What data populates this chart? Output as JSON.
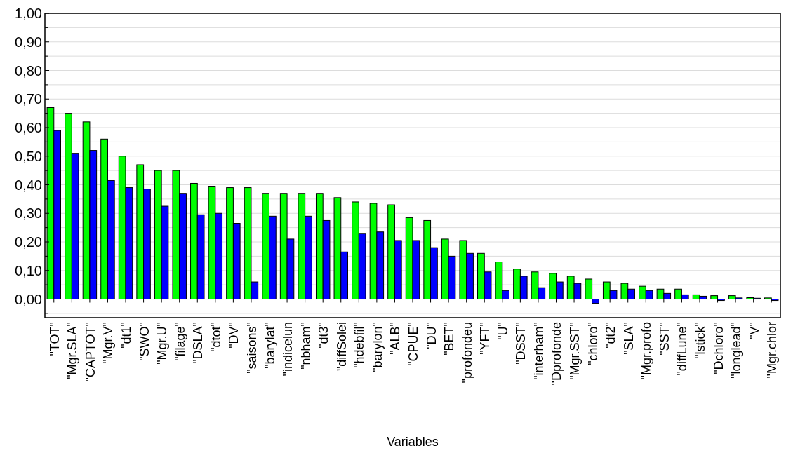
{
  "chart_data": {
    "type": "bar",
    "xlabel": "Variables",
    "categories": [
      "\"TOT\"",
      "\"Mgr.SLA\"",
      "\"CAPTOT\"",
      "\"Mgr.V\"",
      "\"dt1\"",
      "\"SWO\"",
      "\"Mgr.U\"",
      "\"filage\"",
      "\"DSLA\"",
      "\"dtot\"",
      "\"DV\"",
      "\"saisons\"",
      "\"barylat\"",
      "\"indicelun",
      "\"nbham\"",
      "\"dt3\"",
      "\"diffSolei",
      "\"hdebfil\"",
      "\"barylon\"",
      "\"ALB\"",
      "\"CPUE\"",
      "\"DU\"",
      "\"BET\"",
      "\"profondeu",
      "\"YFT\"",
      "\"U\"",
      "\"DSST\"",
      "\"interham\"",
      "\"Dprofonde",
      "\"Mgr.SST\"",
      "\"chloro\"",
      "\"dt2\"",
      "\"SLA\"",
      "\"Mgr.profo",
      "\"SST\"",
      "\"diffLune\"",
      "\"lstick\"",
      "\"Dchloro\"",
      "\"longlead\"",
      "\"V\"",
      "\"Mgr.chlor"
    ],
    "series": [
      {
        "color": "#00ff00",
        "values": [
          0.67,
          0.65,
          0.62,
          0.56,
          0.5,
          0.47,
          0.45,
          0.45,
          0.405,
          0.395,
          0.39,
          0.39,
          0.37,
          0.37,
          0.37,
          0.37,
          0.355,
          0.34,
          0.335,
          0.33,
          0.285,
          0.275,
          0.21,
          0.205,
          0.16,
          0.13,
          0.105,
          0.095,
          0.09,
          0.08,
          0.07,
          0.06,
          0.055,
          0.045,
          0.035,
          0.035,
          0.015,
          0.012,
          0.012,
          0.005,
          0.004
        ]
      },
      {
        "color": "#0000ff",
        "values": [
          0.59,
          0.51,
          0.52,
          0.415,
          0.39,
          0.385,
          0.325,
          0.37,
          0.295,
          0.3,
          0.265,
          0.06,
          0.29,
          0.21,
          0.29,
          0.275,
          0.165,
          0.23,
          0.235,
          0.205,
          0.205,
          0.18,
          0.15,
          0.16,
          0.095,
          0.03,
          0.08,
          0.04,
          0.06,
          0.055,
          -0.015,
          0.03,
          0.035,
          0.03,
          0.02,
          0.015,
          0.01,
          -0.005,
          0.004,
          0.003,
          -0.005
        ]
      }
    ],
    "ylim": [
      -0.065,
      1.0
    ],
    "yticks": [
      {
        "value": -0.05,
        "label": null
      },
      {
        "value": 0,
        "label": "0,00"
      },
      {
        "value": 0.05,
        "label": null
      },
      {
        "value": 0.1,
        "label": "0,10"
      },
      {
        "value": 0.15,
        "label": null
      },
      {
        "value": 0.2,
        "label": "0,20"
      },
      {
        "value": 0.25,
        "label": null
      },
      {
        "value": 0.3,
        "label": "0,30"
      },
      {
        "value": 0.35,
        "label": null
      },
      {
        "value": 0.4,
        "label": "0,40"
      },
      {
        "value": 0.45,
        "label": null
      },
      {
        "value": 0.5,
        "label": "0,50"
      },
      {
        "value": 0.55,
        "label": null
      },
      {
        "value": 0.6,
        "label": "0,60"
      },
      {
        "value": 0.65,
        "label": null
      },
      {
        "value": 0.7,
        "label": "0,70"
      },
      {
        "value": 0.75,
        "label": null
      },
      {
        "value": 0.8,
        "label": "0,80"
      },
      {
        "value": 0.85,
        "label": null
      },
      {
        "value": 0.9,
        "label": "0,90"
      },
      {
        "value": 0.95,
        "label": null
      },
      {
        "value": 1.0,
        "label": "1,00"
      }
    ],
    "grid": "y"
  }
}
